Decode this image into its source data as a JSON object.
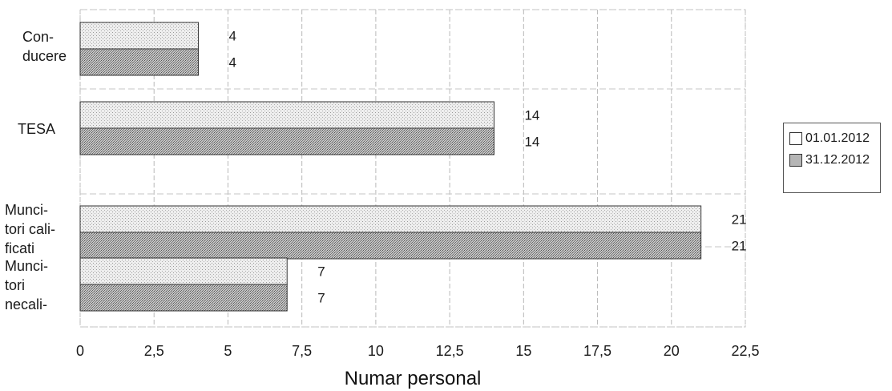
{
  "chart_data": {
    "type": "bar",
    "orientation": "horizontal",
    "categories": [
      "Con-\nducere",
      "TESA",
      "Munci-\ntori cali-\nficati",
      "Munci-\ntori\nnecali-"
    ],
    "series": [
      {
        "name": "01.01.2012",
        "values": [
          4,
          14,
          21,
          7
        ],
        "color": "#d9d9d9"
      },
      {
        "name": "31.12.2012",
        "values": [
          4,
          14,
          21,
          7
        ],
        "color": "#a6a6a6"
      }
    ],
    "data_labels": [
      [
        "4",
        "14",
        "21",
        "7"
      ],
      [
        "4",
        "14",
        "21",
        "7"
      ]
    ],
    "xlabel": "Numar personal",
    "ylabel": "",
    "xlim": [
      0,
      22.5
    ],
    "xticks": [
      "0",
      "2,5",
      "5",
      "7,5",
      "10",
      "12,5",
      "15",
      "17,5",
      "20",
      "22,5"
    ],
    "grid": true,
    "legend_position": "right"
  }
}
